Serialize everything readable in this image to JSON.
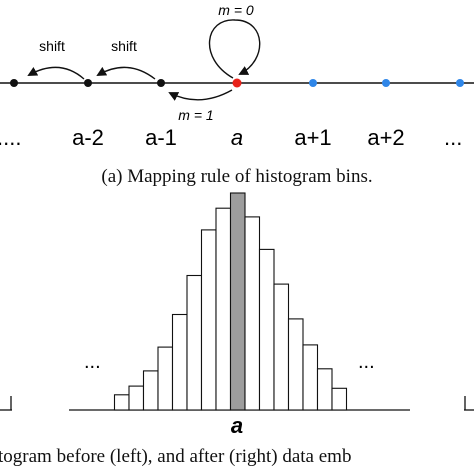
{
  "mapping": {
    "shift_label_1": "shift",
    "shift_label_2": "shift",
    "m0_label": "m = 0",
    "m1_label": "m = 1",
    "bins": [
      "a-2",
      "a-1",
      "a",
      "a+1",
      "a+2"
    ],
    "ellipsis_left": "....",
    "ellipsis_right": "...",
    "colors": {
      "black_dot": "#111111",
      "red_dot": "#e8231b",
      "blue_dot": "#2f86e8"
    }
  },
  "caption_a": "(a) Mapping rule of histogram bins.",
  "histogram": {
    "peak_label": "a",
    "ellipsis_left": "...",
    "ellipsis_right": "...",
    "highlight_color": "#9d9d9d",
    "bar_heights": [
      0.07,
      0.11,
      0.18,
      0.29,
      0.44,
      0.62,
      0.83,
      0.93,
      1.0,
      0.89,
      0.74,
      0.58,
      0.42,
      0.3,
      0.19,
      0.1
    ],
    "highlight_index": 8
  },
  "caption_b": "togram before (left), and after (right) data emb"
}
